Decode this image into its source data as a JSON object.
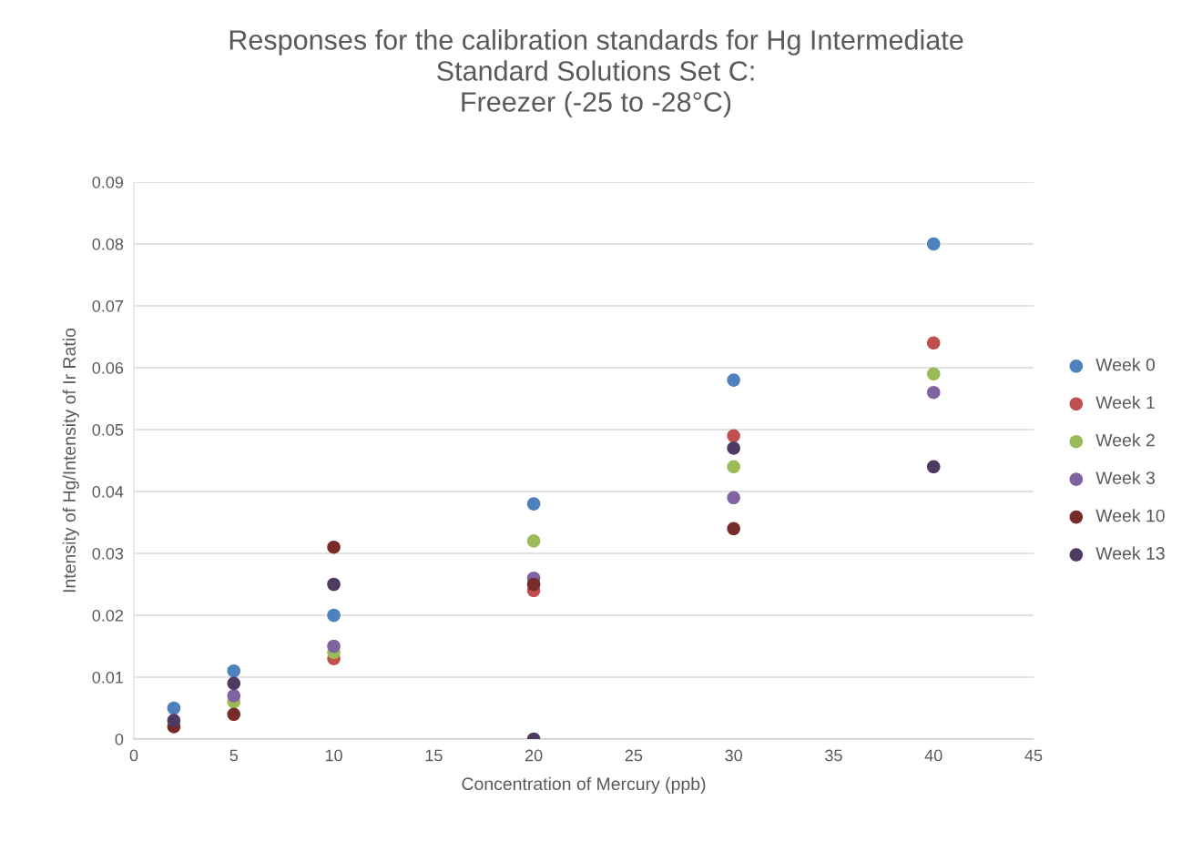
{
  "chart_data": {
    "type": "scatter",
    "title": "Responses for the calibration standards for Hg Intermediate\nStandard Solutions Set C:\nFreezer (-25 to -28°C)",
    "xlabel": "Concentration of Mercury (ppb)",
    "ylabel": "Intensity of Hg/Intensity of Ir Ratio",
    "x": [
      2,
      5,
      10,
      20,
      30,
      40
    ],
    "series": [
      {
        "name": "Week 0",
        "color": "#4f81bd",
        "values": [
          0.005,
          0.011,
          0.02,
          0.038,
          0.058,
          0.08
        ]
      },
      {
        "name": "Week 1",
        "color": "#c0504d",
        "values": [
          null,
          null,
          0.013,
          0.024,
          0.049,
          0.064
        ]
      },
      {
        "name": "Week 2",
        "color": "#9bbb59",
        "values": [
          null,
          0.006,
          0.014,
          0.032,
          0.044,
          0.059
        ]
      },
      {
        "name": "Week 3",
        "color": "#8064a2",
        "values": [
          null,
          0.007,
          0.015,
          0.026,
          0.039,
          0.056
        ]
      },
      {
        "name": "Week 10",
        "color": "#772c2a",
        "values": [
          0.002,
          0.004,
          0.031,
          0.025,
          0.034,
          null
        ]
      },
      {
        "name": "Week 13",
        "color": "#4d3b62",
        "values": [
          0.003,
          0.009,
          0.025,
          0.0,
          0.047,
          0.044
        ]
      }
    ],
    "xlim": [
      0,
      45
    ],
    "xticks": [
      0,
      5,
      10,
      15,
      20,
      25,
      30,
      35,
      40,
      45
    ],
    "ylim": [
      0,
      0.09
    ],
    "yticks": [
      {
        "value": 0,
        "label": "0"
      },
      0.01,
      0.02,
      0.03,
      0.04,
      0.05,
      0.06,
      0.07,
      0.08,
      0.09
    ],
    "grid": "y",
    "legend": "right",
    "marker": "circle"
  }
}
